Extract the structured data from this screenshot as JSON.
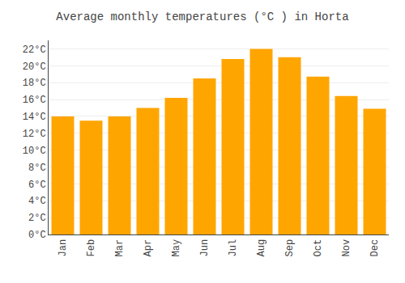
{
  "chart_data": {
    "type": "bar",
    "title": "Average monthly temperatures (°C ) in Horta",
    "categories": [
      "Jan",
      "Feb",
      "Mar",
      "Apr",
      "May",
      "Jun",
      "Jul",
      "Aug",
      "Sep",
      "Oct",
      "Nov",
      "Dec"
    ],
    "values": [
      14.0,
      13.5,
      14.0,
      15.0,
      16.2,
      18.5,
      20.8,
      22.0,
      21.0,
      18.7,
      16.4,
      14.9
    ],
    "color": "#FFA500",
    "ylim": [
      0,
      23
    ],
    "yticks": [
      {
        "value": 0,
        "label": "0°C"
      },
      {
        "value": 2,
        "label": "2°C"
      },
      {
        "value": 4,
        "label": "4°C"
      },
      {
        "value": 6,
        "label": "6°C"
      },
      {
        "value": 8,
        "label": "8°C"
      },
      {
        "value": 10,
        "label": "10°C"
      },
      {
        "value": 12,
        "label": "12°C"
      },
      {
        "value": 14,
        "label": "14°C"
      },
      {
        "value": 16,
        "label": "16°C"
      },
      {
        "value": 18,
        "label": "18°C"
      },
      {
        "value": 20,
        "label": "20°C"
      },
      {
        "value": 22,
        "label": "22°C"
      }
    ],
    "grid": true
  }
}
